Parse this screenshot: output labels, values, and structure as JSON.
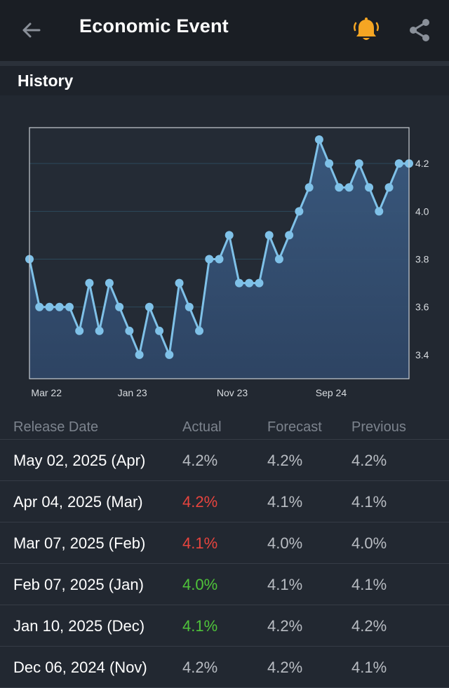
{
  "header": {
    "title": "Economic Event",
    "back_icon": "arrow-left-icon",
    "bell_icon": "bell-icon",
    "share_icon": "share-icon",
    "accent_color": "#f5a623"
  },
  "section": {
    "title": "History"
  },
  "chart_data": {
    "type": "line",
    "x_tick_labels": [
      "Mar 22",
      "Jan 23",
      "Nov 23",
      "Sep 24"
    ],
    "y_tick_labels": [
      "3.4",
      "3.6",
      "3.8",
      "4.0",
      "4.2"
    ],
    "ylim": [
      3.3,
      4.35
    ],
    "grid": true,
    "series": [
      {
        "values": [
          3.8,
          3.6,
          3.6,
          3.6,
          3.6,
          3.5,
          3.7,
          3.5,
          3.7,
          3.6,
          3.5,
          3.4,
          3.6,
          3.5,
          3.4,
          3.7,
          3.6,
          3.5,
          3.8,
          3.8,
          3.9,
          3.7,
          3.7,
          3.7,
          3.9,
          3.8,
          3.9,
          4.0,
          4.1,
          4.3,
          4.2,
          4.1,
          4.1,
          4.2,
          4.1,
          4.0,
          4.1,
          4.2,
          4.2
        ],
        "color": "#7fc1e8"
      }
    ]
  },
  "table": {
    "headers": [
      "Release Date",
      "Actual",
      "Forecast",
      "Previous"
    ],
    "rows": [
      {
        "date": "May 02, 2025 (Apr)",
        "actual": "4.2%",
        "actual_color": "#b9bdc3",
        "forecast": "4.2%",
        "previous": "4.2%"
      },
      {
        "date": "Apr 04, 2025 (Mar)",
        "actual": "4.2%",
        "actual_color": "#e8443e",
        "forecast": "4.1%",
        "previous": "4.1%"
      },
      {
        "date": "Mar 07, 2025 (Feb)",
        "actual": "4.1%",
        "actual_color": "#e8443e",
        "forecast": "4.0%",
        "previous": "4.0%"
      },
      {
        "date": "Feb 07, 2025 (Jan)",
        "actual": "4.0%",
        "actual_color": "#4fc43a",
        "forecast": "4.1%",
        "previous": "4.1%"
      },
      {
        "date": "Jan 10, 2025 (Dec)",
        "actual": "4.1%",
        "actual_color": "#4fc43a",
        "forecast": "4.2%",
        "previous": "4.2%"
      },
      {
        "date": "Dec 06, 2024 (Nov)",
        "actual": "4.2%",
        "actual_color": "#b9bdc3",
        "forecast": "4.2%",
        "previous": "4.1%"
      }
    ]
  }
}
